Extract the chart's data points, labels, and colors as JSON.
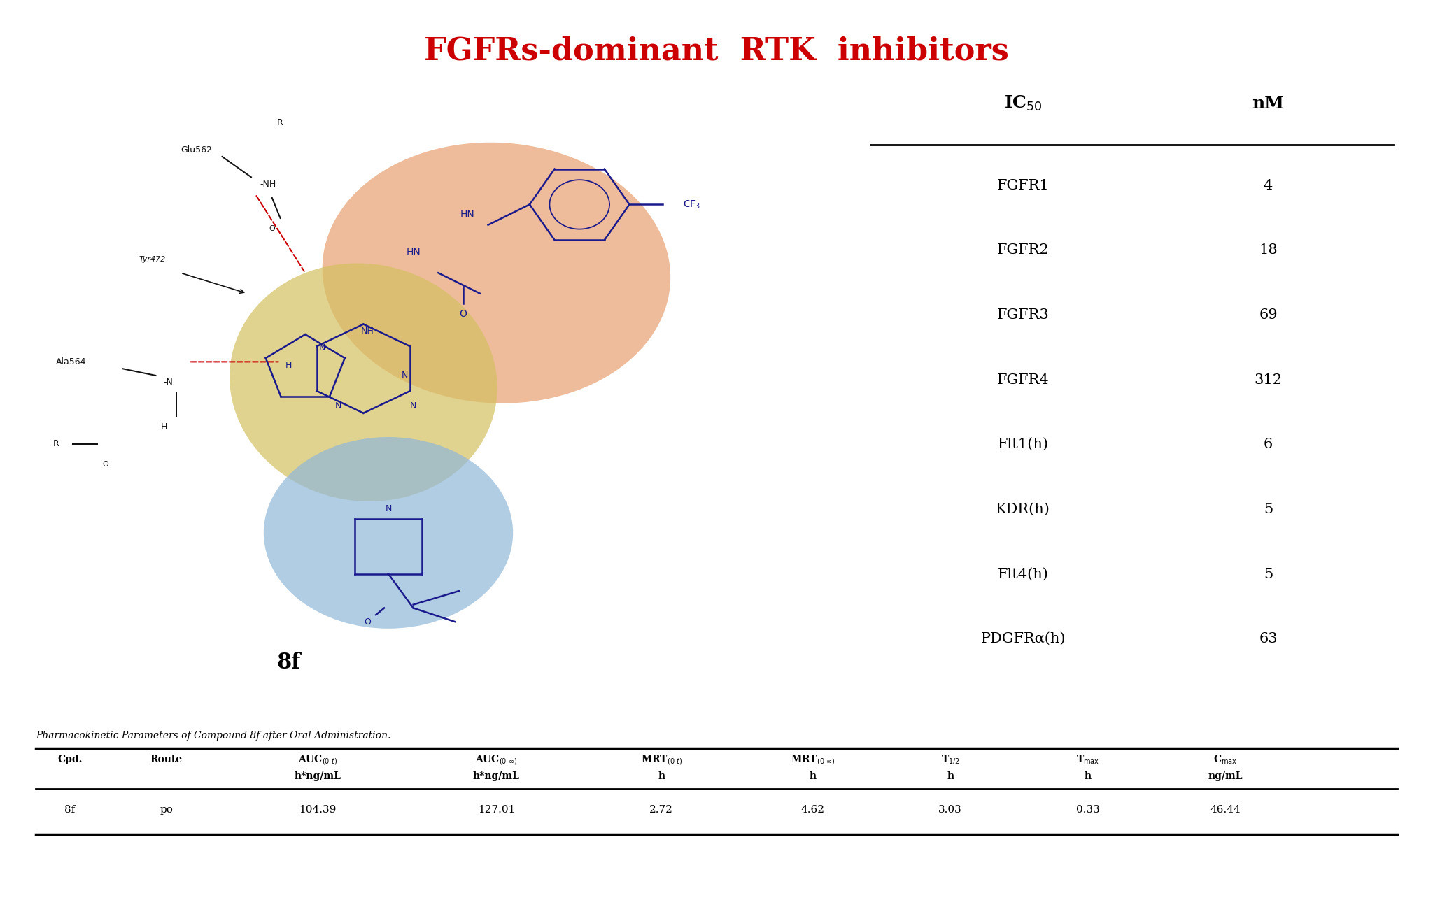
{
  "title": "FGFRs-dominant  RTK  inhibitors",
  "title_color": "#CC0000",
  "title_fontsize": 32,
  "ic50_header": [
    "IC$_{50}$",
    "nM"
  ],
  "ic50_rows": [
    [
      "FGFR1",
      "4"
    ],
    [
      "FGFR2",
      "18"
    ],
    [
      "FGFR3",
      "69"
    ],
    [
      "FGFR4",
      "312"
    ],
    [
      "Flt1(h)",
      "6"
    ],
    [
      "KDR(h)",
      "5"
    ],
    [
      "Flt4(h)",
      "5"
    ],
    [
      "PDGFRα(h)",
      "63"
    ]
  ],
  "pk_caption": "Pharmacokinetic Parameters of Compound 8f after Oral Administration.",
  "pk_headers_line1": [
    "Cpd.",
    "Route",
    "AUC$_{(0\\text{-}t)}$",
    "AUC$_{(0\\text{-}\\infty)}$",
    "MRT$_{(0\\text{-}t)}$",
    "MRT$_{(0\\text{-}\\infty)}$",
    "T$_{1/2}$",
    "T$_{\\text{max}}$",
    "C$_{\\text{max}}$"
  ],
  "pk_headers_line2": [
    "",
    "",
    "h*ng/mL",
    "h*ng/mL",
    "h",
    "h",
    "h",
    "h",
    "ng/mL"
  ],
  "pk_data": [
    "8f",
    "po",
    "104.39",
    "127.01",
    "2.72",
    "4.62",
    "3.03",
    "0.33",
    "46.44"
  ],
  "orange_blob_color": "#E8A080",
  "yellow_blob_color": "#E8D080",
  "blue_blob_color": "#A8C8E8",
  "structure_label": "8f",
  "background_color": "#FFFFFF"
}
